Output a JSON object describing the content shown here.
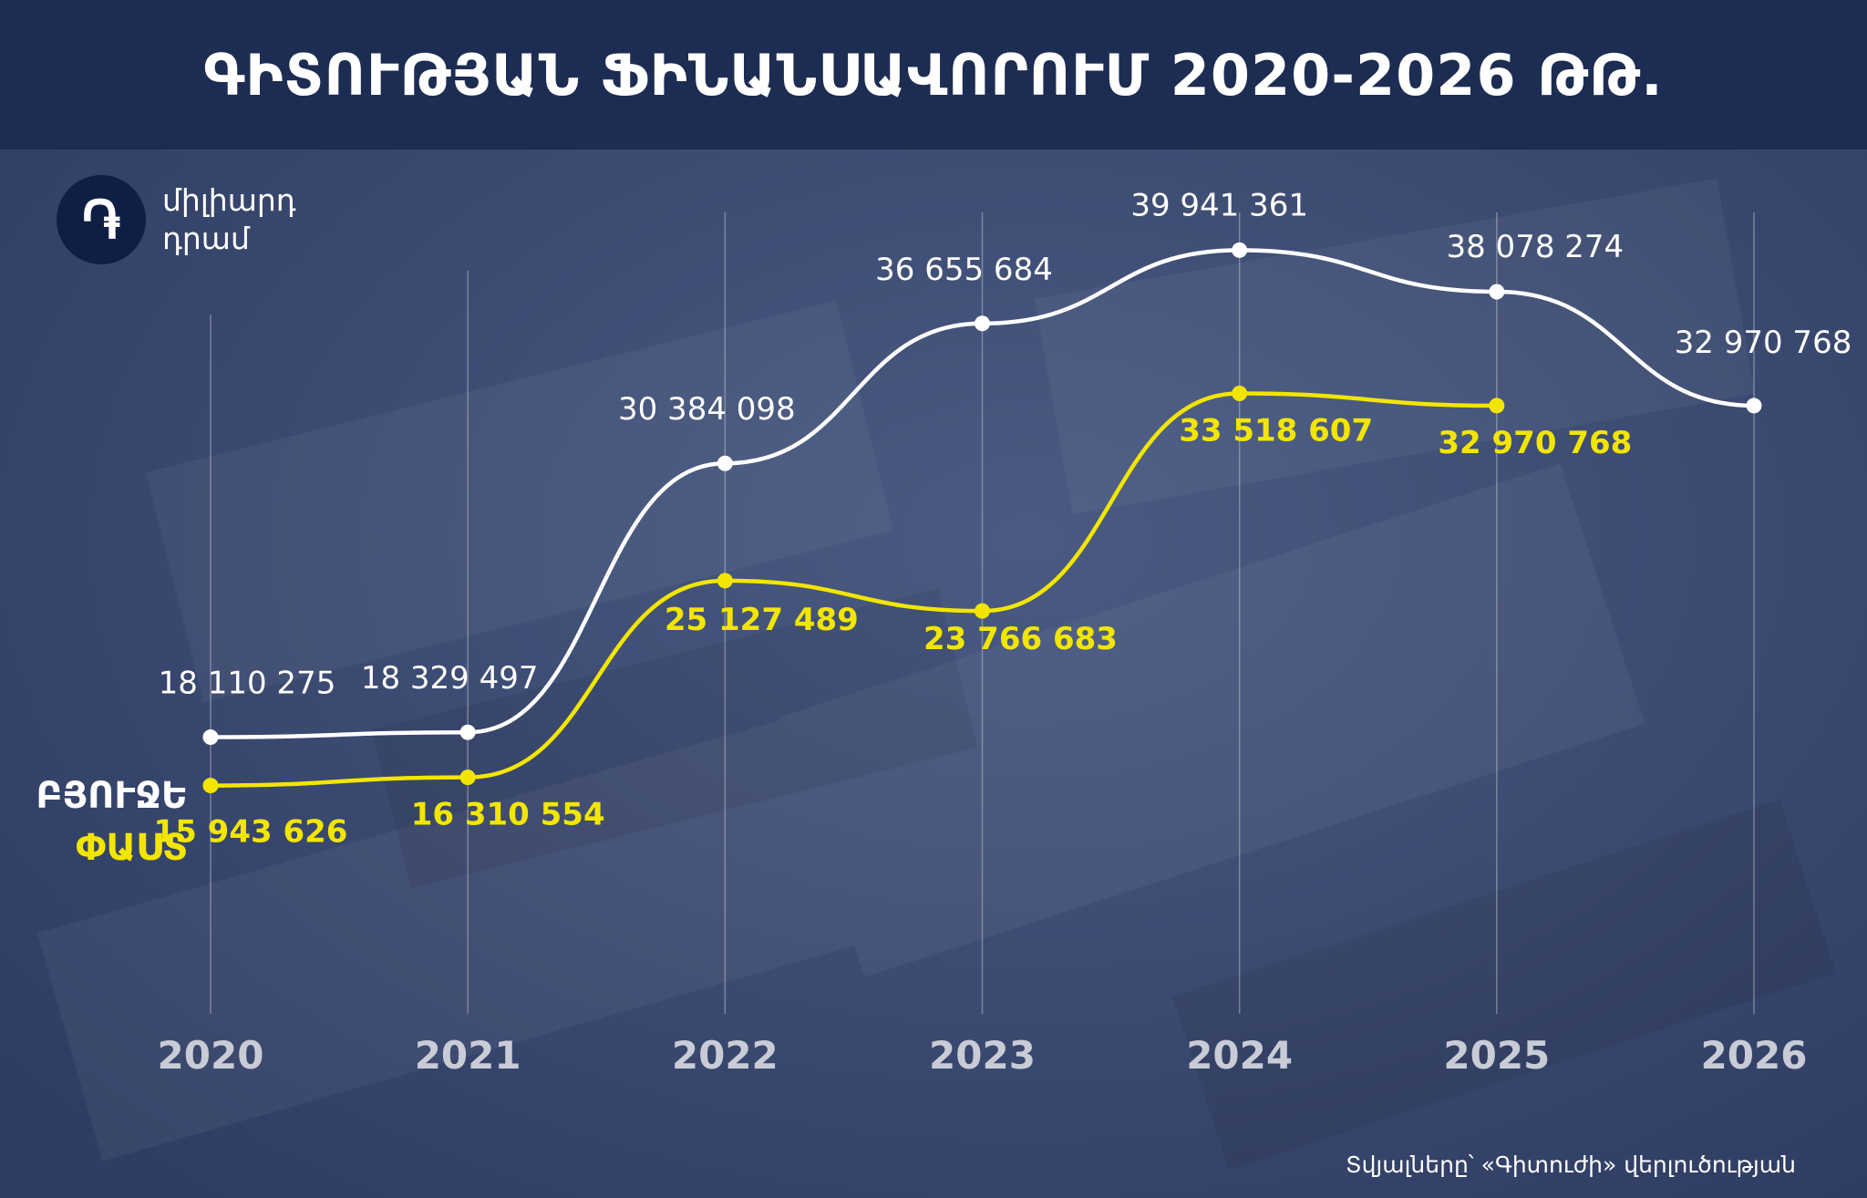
{
  "title": "ԳԻՏՈՒԹՅԱՆ ՖԻՆԱՆՍԱՎՈՐՈՒՄ 2020-2026 ԹԹ.",
  "unit": {
    "symbol": "֏",
    "line1": "միլիարդ",
    "line2": "դրամ"
  },
  "source": "Տվյալները՝ «Գիտուժի» վերլուծության",
  "colors": {
    "budget": "#ffffff",
    "actual": "#f2e600",
    "band": "#1d2c52",
    "background": "#3b4a70",
    "axis": "#c9ccd6"
  },
  "chart_data": {
    "type": "line",
    "categories": [
      "2020",
      "2021",
      "2022",
      "2023",
      "2024",
      "2025",
      "2026"
    ],
    "ylim": [
      10000000,
      42000000
    ],
    "grid": "vertical",
    "series": [
      {
        "name": "ԲՅՈՒՋԵ",
        "values": [
          18110275,
          18329497,
          30384098,
          36655684,
          39941361,
          38078274,
          32970768
        ],
        "labels": [
          "18 110 275",
          "18 329 497",
          "30 384 098",
          "36 655 684",
          "39 941 361",
          "38 078 274",
          "32 970 768"
        ]
      },
      {
        "name": "ՓԱՍՏ",
        "values": [
          15943626,
          16310554,
          25127489,
          23766683,
          33518607,
          32970768,
          null
        ],
        "labels": [
          "15 943 626",
          "16 310 554",
          "25 127 489",
          "23 766 683",
          "33 518 607",
          "32 970 768",
          ""
        ]
      }
    ]
  }
}
